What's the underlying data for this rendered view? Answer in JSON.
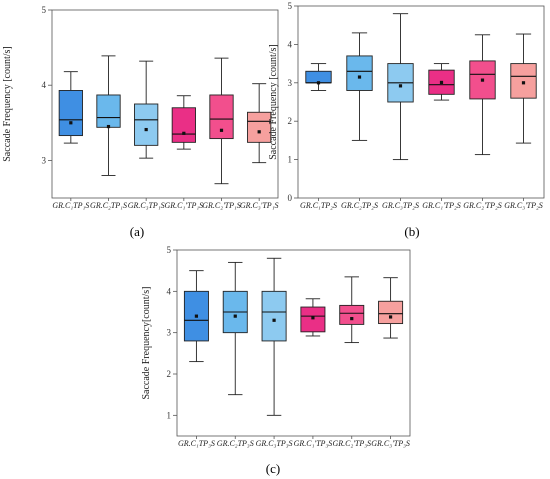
{
  "chart_data": [
    {
      "type": "box",
      "panel_label": "(a)",
      "ylabel": "Saccade Frequency [count/s]",
      "ylim": [
        2.5,
        5
      ],
      "yticks": [
        3,
        4,
        5
      ],
      "categories": [
        "GR.C₁TP₁S",
        "GR.C₂TP₁S",
        "GR.C₃TP₁S",
        "GR.C₁'TP₁S",
        "GR.C₂'TP₁S",
        "GR.C₃'TP₁S"
      ],
      "colors": [
        "#3f8fe3",
        "#6ab8ec",
        "#8dcaf0",
        "#ea2f86",
        "#f24f8d",
        "#f6a09e"
      ],
      "boxes": [
        {
          "min": 3.23,
          "q1": 3.33,
          "median": 3.54,
          "q3": 3.93,
          "max": 4.18,
          "mean": 3.5
        },
        {
          "min": 2.8,
          "q1": 3.44,
          "median": 3.57,
          "q3": 3.87,
          "max": 4.39,
          "mean": 3.45
        },
        {
          "min": 3.03,
          "q1": 3.2,
          "median": 3.54,
          "q3": 3.75,
          "max": 4.32,
          "mean": 3.41
        },
        {
          "min": 3.15,
          "q1": 3.24,
          "median": 3.35,
          "q3": 3.7,
          "max": 3.86,
          "mean": 3.36
        },
        {
          "min": 2.69,
          "q1": 3.29,
          "median": 3.55,
          "q3": 3.87,
          "max": 4.36,
          "mean": 3.4
        },
        {
          "min": 2.97,
          "q1": 3.24,
          "median": 3.52,
          "q3": 3.64,
          "max": 4.02,
          "mean": 3.38
        }
      ]
    },
    {
      "type": "box",
      "panel_label": "(b)",
      "ylabel": "Saccade Frequency [count/s]",
      "ylim": [
        0,
        5
      ],
      "yticks": [
        0,
        1,
        2,
        3,
        4,
        5
      ],
      "categories": [
        "GR.C₁TP₂S",
        "GR.C₂TP₂S",
        "GR.C₃TP₂S",
        "GR.C₁'TP₂S",
        "GR.C₂'TP₂S",
        "GR.C₃'TP₂S"
      ],
      "colors": [
        "#3f8fe3",
        "#6ab8ec",
        "#8dcaf0",
        "#ea2f86",
        "#f24f8d",
        "#f6a09e"
      ],
      "boxes": [
        {
          "min": 2.8,
          "q1": 3.0,
          "median": 3.0,
          "q3": 3.3,
          "max": 3.5,
          "mean": 3.0
        },
        {
          "min": 1.5,
          "q1": 2.8,
          "median": 3.3,
          "q3": 3.7,
          "max": 4.3,
          "mean": 3.15
        },
        {
          "min": 1.0,
          "q1": 2.5,
          "median": 3.0,
          "q3": 3.5,
          "max": 4.8,
          "mean": 2.92
        },
        {
          "min": 2.55,
          "q1": 2.7,
          "median": 2.95,
          "q3": 3.33,
          "max": 3.5,
          "mean": 3.01
        },
        {
          "min": 1.13,
          "q1": 2.58,
          "median": 3.22,
          "q3": 3.57,
          "max": 4.25,
          "mean": 3.07
        },
        {
          "min": 1.43,
          "q1": 2.6,
          "median": 3.17,
          "q3": 3.5,
          "max": 4.27,
          "mean": 3.0
        }
      ]
    },
    {
      "type": "box",
      "panel_label": "(c)",
      "ylabel": "Saccade Frequency[count/s]",
      "ylim": [
        0.5,
        5
      ],
      "yticks": [
        1,
        2,
        3,
        4,
        5
      ],
      "categories": [
        "GR.C₁TP₃S",
        "GR.C₂TP₃S",
        "GR.C₃TP₃S",
        "GR.C₁'TP₃S",
        "GR.C₂'TP₃S",
        "GR.C₃'TP₃S"
      ],
      "colors": [
        "#3f8fe3",
        "#6ab8ec",
        "#8dcaf0",
        "#ea2f86",
        "#f24f8d",
        "#f6a09e"
      ],
      "boxes": [
        {
          "min": 2.3,
          "q1": 2.8,
          "median": 3.3,
          "q3": 4.0,
          "max": 4.5,
          "mean": 3.4
        },
        {
          "min": 1.5,
          "q1": 3.0,
          "median": 3.5,
          "q3": 4.0,
          "max": 4.7,
          "mean": 3.4
        },
        {
          "min": 1.0,
          "q1": 2.8,
          "median": 3.5,
          "q3": 4.0,
          "max": 4.8,
          "mean": 3.3
        },
        {
          "min": 2.92,
          "q1": 3.02,
          "median": 3.4,
          "q3": 3.62,
          "max": 3.82,
          "mean": 3.36
        },
        {
          "min": 2.76,
          "q1": 3.2,
          "median": 3.47,
          "q3": 3.66,
          "max": 4.35,
          "mean": 3.34
        },
        {
          "min": 2.87,
          "q1": 3.22,
          "median": 3.46,
          "q3": 3.76,
          "max": 4.33,
          "mean": 3.38
        }
      ]
    }
  ]
}
